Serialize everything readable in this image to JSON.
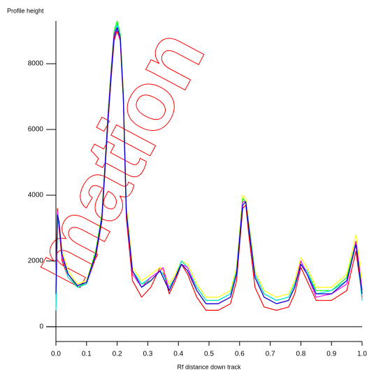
{
  "chart_data": {
    "type": "line",
    "title": "Profile height",
    "x_label": "Rf distance down track",
    "watermark": "mation",
    "x": [
      0,
      0.005,
      0.01,
      0.02,
      0.04,
      0.07,
      0.1,
      0.13,
      0.15,
      0.17,
      0.18,
      0.19,
      0.2,
      0.21,
      0.22,
      0.23,
      0.25,
      0.28,
      0.31,
      0.34,
      0.35,
      0.37,
      0.39,
      0.41,
      0.43,
      0.46,
      0.49,
      0.53,
      0.57,
      0.59,
      0.61,
      0.62,
      0.63,
      0.65,
      0.68,
      0.72,
      0.76,
      0.78,
      0.8,
      0.82,
      0.85,
      0.9,
      0.95,
      0.98,
      1.0
    ],
    "series": [
      {
        "color": "#ff0000",
        "values": [
          1200,
          3600,
          3000,
          2000,
          1500,
          1200,
          1300,
          2100,
          3200,
          6200,
          7500,
          8700,
          9000,
          8700,
          6900,
          3300,
          1400,
          900,
          1200,
          1800,
          1700,
          1000,
          1400,
          1900,
          1600,
          900,
          500,
          500,
          700,
          1400,
          3600,
          3700,
          2800,
          1200,
          600,
          500,
          600,
          1000,
          1800,
          1400,
          800,
          800,
          1100,
          2300,
          900
        ]
      },
      {
        "color": "#ffff00",
        "values": [
          1300,
          3500,
          3200,
          2300,
          1700,
          1300,
          1400,
          2300,
          3400,
          6300,
          7700,
          8900,
          9200,
          8900,
          7200,
          3700,
          1800,
          1400,
          1600,
          1800,
          1700,
          1300,
          1600,
          2000,
          1900,
          1300,
          900,
          900,
          1100,
          1800,
          4000,
          3900,
          3200,
          1700,
          1100,
          900,
          1000,
          1400,
          2100,
          1800,
          1200,
          1200,
          1600,
          2800,
          1300
        ]
      },
      {
        "color": "#00ff00",
        "values": [
          600,
          3200,
          3100,
          2100,
          1600,
          1200,
          1350,
          2300,
          3400,
          6500,
          7800,
          9000,
          9300,
          8900,
          7100,
          3600,
          1700,
          1300,
          1400,
          1700,
          1600,
          1200,
          1500,
          2000,
          1800,
          1200,
          800,
          800,
          1000,
          1700,
          3900,
          3800,
          3100,
          1600,
          1000,
          800,
          900,
          1300,
          1900,
          1700,
          1100,
          1100,
          1500,
          2600,
          1000
        ]
      },
      {
        "color": "#00e0e0",
        "values": [
          500,
          3300,
          3200,
          2100,
          1500,
          1200,
          1300,
          2200,
          3300,
          6400,
          7600,
          8900,
          9200,
          8800,
          7000,
          3500,
          1700,
          1300,
          1500,
          1700,
          1600,
          1200,
          1500,
          2000,
          1800,
          1200,
          800,
          800,
          1000,
          1700,
          3800,
          3800,
          3100,
          1600,
          1000,
          800,
          900,
          1300,
          1900,
          1700,
          1000,
          1100,
          1400,
          2600,
          800
        ]
      },
      {
        "color": "#ff00ff",
        "values": [
          1100,
          3500,
          3100,
          2100,
          1600,
          1250,
          1350,
          2200,
          3300,
          6400,
          7700,
          8900,
          9100,
          8700,
          7000,
          3400,
          1600,
          1200,
          1500,
          1700,
          1800,
          1100,
          1500,
          1900,
          1800,
          1100,
          700,
          700,
          900,
          1600,
          3800,
          3800,
          3000,
          1500,
          900,
          700,
          800,
          1200,
          2000,
          1600,
          900,
          1000,
          1300,
          2600,
          1100
        ]
      },
      {
        "color": "#0000cc",
        "values": [
          1000,
          3400,
          3200,
          2200,
          1600,
          1250,
          1350,
          2200,
          3300,
          6300,
          7600,
          8800,
          9100,
          8800,
          7000,
          3500,
          1700,
          1200,
          1400,
          1700,
          1500,
          1100,
          1500,
          1900,
          1700,
          1100,
          700,
          700,
          900,
          1600,
          3700,
          3800,
          3000,
          1500,
          900,
          700,
          800,
          1200,
          1900,
          1600,
          1000,
          1000,
          1400,
          2500,
          1000
        ]
      }
    ],
    "xlim": [
      0,
      1
    ],
    "ylim": [
      -450,
      9300
    ],
    "xticks": [
      {
        "value": 0,
        "label": "0.0"
      },
      0.1,
      0.2,
      0.3,
      0.4,
      0.5,
      0.6,
      0.7,
      0.8,
      0.9,
      {
        "value": 1,
        "label": "1.0"
      }
    ],
    "yticks": [
      0,
      2000,
      4000,
      6000,
      8000
    ],
    "grid": false
  }
}
